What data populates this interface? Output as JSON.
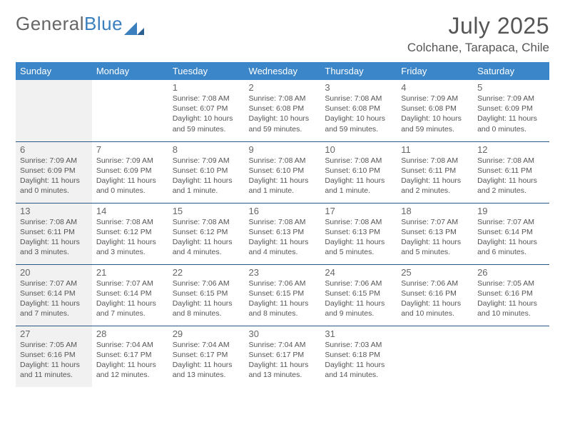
{
  "brand": {
    "part1": "General",
    "part2": "Blue"
  },
  "title": "July 2025",
  "location": "Colchane, Tarapaca, Chile",
  "colors": {
    "header_bg": "#3b86c8",
    "header_text": "#ffffff",
    "row_border": "#2a5785",
    "sunday_bg": "#f1f1f1",
    "text": "#555555",
    "brand_blue": "#3b7fbf"
  },
  "day_headers": [
    "Sunday",
    "Monday",
    "Tuesday",
    "Wednesday",
    "Thursday",
    "Friday",
    "Saturday"
  ],
  "weeks": [
    [
      null,
      null,
      {
        "n": "1",
        "sr": "7:08 AM",
        "ss": "6:07 PM",
        "dl": "10 hours and 59 minutes."
      },
      {
        "n": "2",
        "sr": "7:08 AM",
        "ss": "6:08 PM",
        "dl": "10 hours and 59 minutes."
      },
      {
        "n": "3",
        "sr": "7:08 AM",
        "ss": "6:08 PM",
        "dl": "10 hours and 59 minutes."
      },
      {
        "n": "4",
        "sr": "7:09 AM",
        "ss": "6:08 PM",
        "dl": "10 hours and 59 minutes."
      },
      {
        "n": "5",
        "sr": "7:09 AM",
        "ss": "6:09 PM",
        "dl": "11 hours and 0 minutes."
      }
    ],
    [
      {
        "n": "6",
        "sr": "7:09 AM",
        "ss": "6:09 PM",
        "dl": "11 hours and 0 minutes."
      },
      {
        "n": "7",
        "sr": "7:09 AM",
        "ss": "6:09 PM",
        "dl": "11 hours and 0 minutes."
      },
      {
        "n": "8",
        "sr": "7:09 AM",
        "ss": "6:10 PM",
        "dl": "11 hours and 1 minute."
      },
      {
        "n": "9",
        "sr": "7:08 AM",
        "ss": "6:10 PM",
        "dl": "11 hours and 1 minute."
      },
      {
        "n": "10",
        "sr": "7:08 AM",
        "ss": "6:10 PM",
        "dl": "11 hours and 1 minute."
      },
      {
        "n": "11",
        "sr": "7:08 AM",
        "ss": "6:11 PM",
        "dl": "11 hours and 2 minutes."
      },
      {
        "n": "12",
        "sr": "7:08 AM",
        "ss": "6:11 PM",
        "dl": "11 hours and 2 minutes."
      }
    ],
    [
      {
        "n": "13",
        "sr": "7:08 AM",
        "ss": "6:11 PM",
        "dl": "11 hours and 3 minutes."
      },
      {
        "n": "14",
        "sr": "7:08 AM",
        "ss": "6:12 PM",
        "dl": "11 hours and 3 minutes."
      },
      {
        "n": "15",
        "sr": "7:08 AM",
        "ss": "6:12 PM",
        "dl": "11 hours and 4 minutes."
      },
      {
        "n": "16",
        "sr": "7:08 AM",
        "ss": "6:13 PM",
        "dl": "11 hours and 4 minutes."
      },
      {
        "n": "17",
        "sr": "7:08 AM",
        "ss": "6:13 PM",
        "dl": "11 hours and 5 minutes."
      },
      {
        "n": "18",
        "sr": "7:07 AM",
        "ss": "6:13 PM",
        "dl": "11 hours and 5 minutes."
      },
      {
        "n": "19",
        "sr": "7:07 AM",
        "ss": "6:14 PM",
        "dl": "11 hours and 6 minutes."
      }
    ],
    [
      {
        "n": "20",
        "sr": "7:07 AM",
        "ss": "6:14 PM",
        "dl": "11 hours and 7 minutes."
      },
      {
        "n": "21",
        "sr": "7:07 AM",
        "ss": "6:14 PM",
        "dl": "11 hours and 7 minutes."
      },
      {
        "n": "22",
        "sr": "7:06 AM",
        "ss": "6:15 PM",
        "dl": "11 hours and 8 minutes."
      },
      {
        "n": "23",
        "sr": "7:06 AM",
        "ss": "6:15 PM",
        "dl": "11 hours and 8 minutes."
      },
      {
        "n": "24",
        "sr": "7:06 AM",
        "ss": "6:15 PM",
        "dl": "11 hours and 9 minutes."
      },
      {
        "n": "25",
        "sr": "7:06 AM",
        "ss": "6:16 PM",
        "dl": "11 hours and 10 minutes."
      },
      {
        "n": "26",
        "sr": "7:05 AM",
        "ss": "6:16 PM",
        "dl": "11 hours and 10 minutes."
      }
    ],
    [
      {
        "n": "27",
        "sr": "7:05 AM",
        "ss": "6:16 PM",
        "dl": "11 hours and 11 minutes."
      },
      {
        "n": "28",
        "sr": "7:04 AM",
        "ss": "6:17 PM",
        "dl": "11 hours and 12 minutes."
      },
      {
        "n": "29",
        "sr": "7:04 AM",
        "ss": "6:17 PM",
        "dl": "11 hours and 13 minutes."
      },
      {
        "n": "30",
        "sr": "7:04 AM",
        "ss": "6:17 PM",
        "dl": "11 hours and 13 minutes."
      },
      {
        "n": "31",
        "sr": "7:03 AM",
        "ss": "6:18 PM",
        "dl": "11 hours and 14 minutes."
      },
      null,
      null
    ]
  ],
  "labels": {
    "sunrise": "Sunrise: ",
    "sunset": "Sunset: ",
    "daylight": "Daylight: "
  }
}
